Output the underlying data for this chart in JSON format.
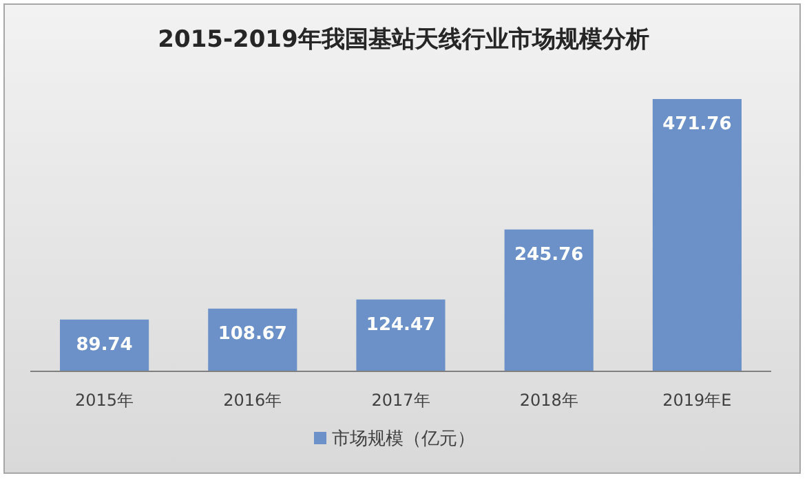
{
  "chart_data": {
    "type": "bar",
    "title": "2015-2019年我国基站天线行业市场规模分析",
    "categories": [
      "2015年",
      "2016年",
      "2017年",
      "2018年",
      "2019年E"
    ],
    "series": [
      {
        "name": "市场规模（亿元）",
        "color": "#6b91c8",
        "values": [
          89.74,
          108.67,
          124.47,
          245.76,
          471.76
        ]
      }
    ],
    "data_labels": true,
    "legend": "bottom"
  }
}
